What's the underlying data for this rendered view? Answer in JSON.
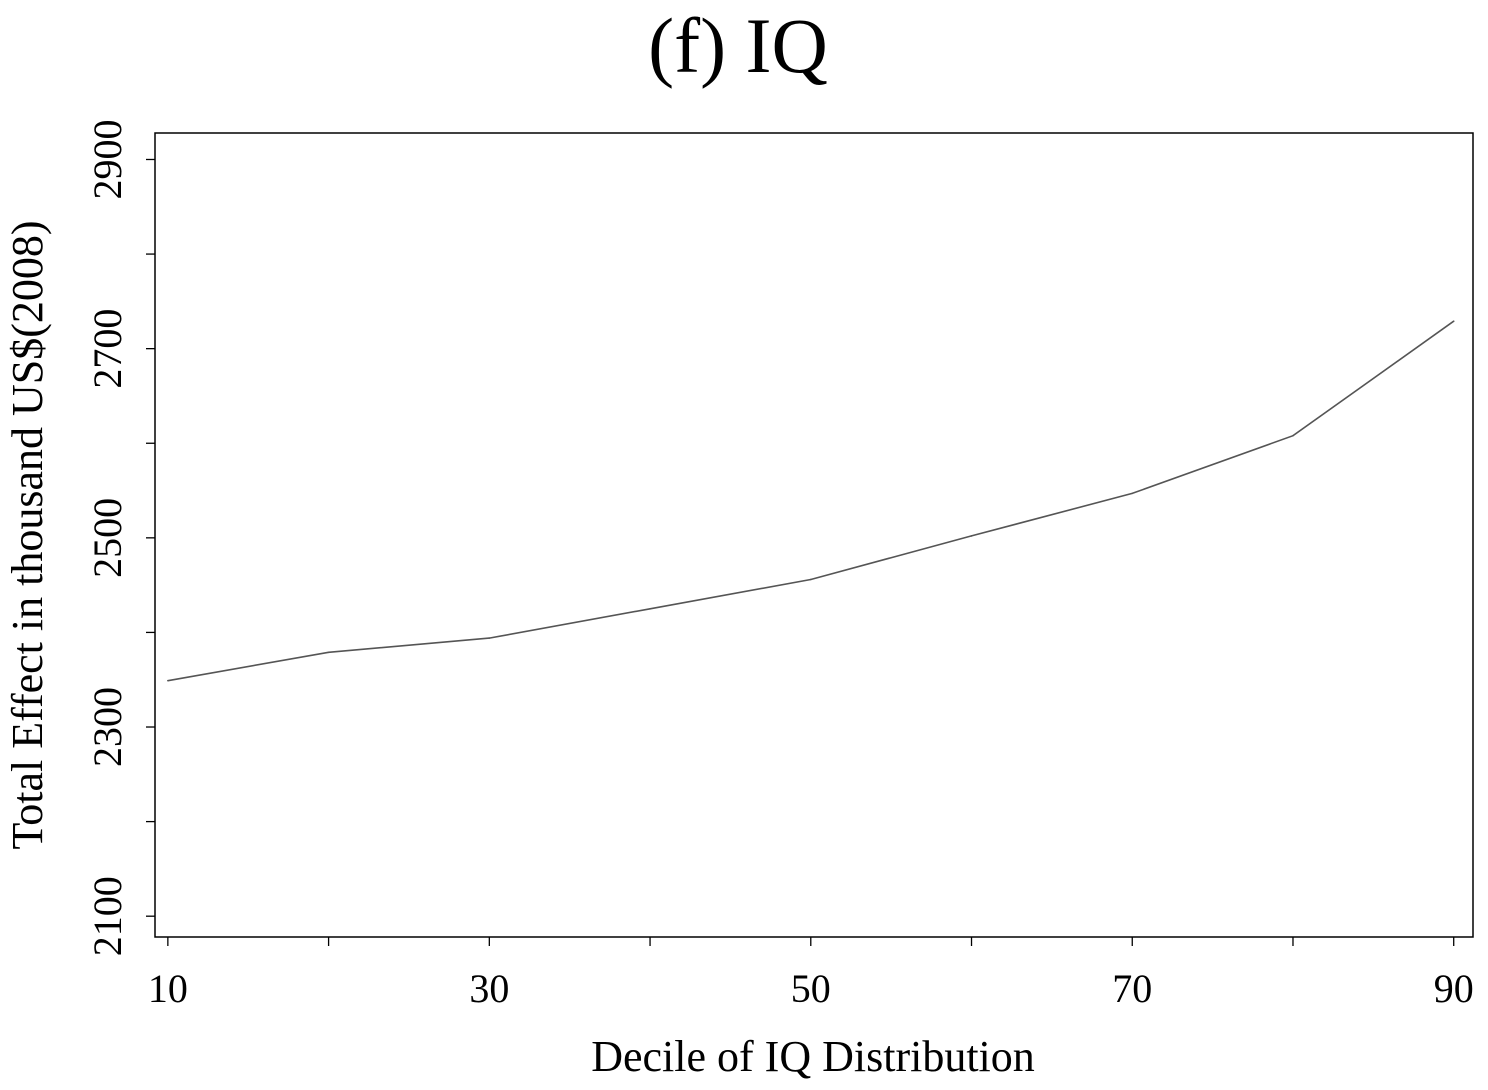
{
  "chart_data": {
    "type": "line",
    "title": "(f) IQ",
    "xlabel": "Decile of IQ Distribution",
    "ylabel": "Total Effect in thousand US$(2008)",
    "xlim": [
      9.2,
      91.2
    ],
    "ylim": [
      2078,
      2928
    ],
    "x_ticks": [
      10,
      20,
      30,
      40,
      50,
      60,
      70,
      80,
      90
    ],
    "x_tick_labels": [
      "10",
      "30",
      "50",
      "70",
      "90"
    ],
    "x_tick_label_values": [
      10,
      30,
      50,
      70,
      90
    ],
    "y_ticks": [
      2100,
      2200,
      2300,
      2400,
      2500,
      2600,
      2700,
      2800,
      2900
    ],
    "y_tick_labels": [
      "2100",
      "2300",
      "2500",
      "2700",
      "2900"
    ],
    "y_tick_label_values": [
      2100,
      2300,
      2500,
      2700,
      2900
    ],
    "grid": false,
    "line_color": "#555555",
    "series": [
      {
        "x": [
          10,
          20,
          30,
          40,
          50,
          60,
          70,
          80,
          90
        ],
        "values": [
          2349,
          2379,
          2394,
          2425,
          2456,
          2502,
          2547,
          2608,
          2729
        ]
      }
    ]
  }
}
